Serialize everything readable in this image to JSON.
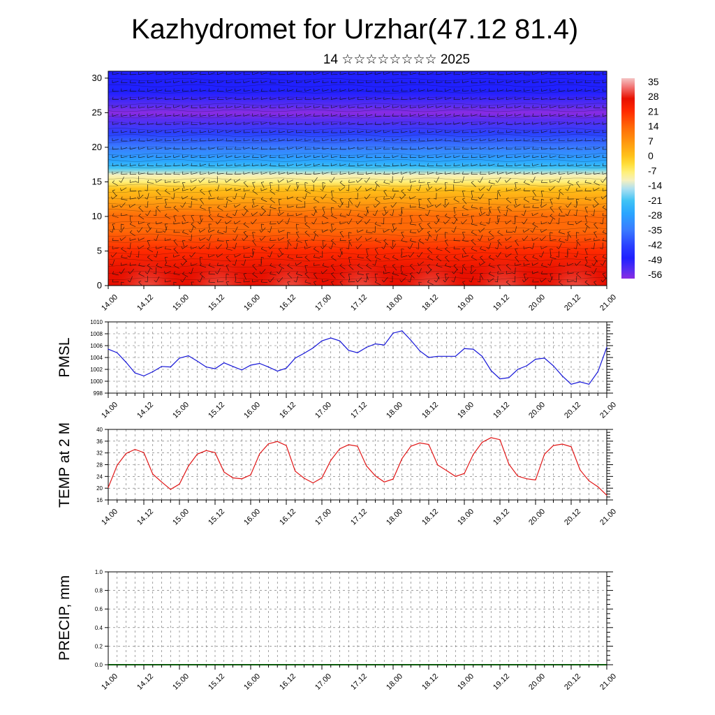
{
  "title": "Kazhydromet for Urzhar(47.12 81.4)",
  "subtitle": "14 ☆☆☆☆☆☆☆☆ 2025",
  "chart_data": [
    {
      "type": "heatmap",
      "x_ticks": [
        "14.00",
        "14.12",
        "15.00",
        "15.12",
        "16.00",
        "16.12",
        "17.00",
        "17.12",
        "18.00",
        "18.12",
        "19.00",
        "19.12",
        "20.00",
        "20.12",
        "21.00"
      ],
      "ylim": [
        0,
        31
      ],
      "y_ticks": [
        0,
        5,
        10,
        15,
        20,
        25,
        30
      ],
      "colorbar_labels": [
        "35",
        "28",
        "21",
        "14",
        "7",
        "0",
        "-7",
        "-14",
        "-21",
        "-28",
        "-35",
        "-42",
        "-49",
        "-56"
      ],
      "colorbar_range": [
        -60,
        38
      ],
      "temperature_profile": [
        {
          "level": 0,
          "temp": 32
        },
        {
          "level": 2,
          "temp": 30
        },
        {
          "level": 5,
          "temp": 26
        },
        {
          "level": 8,
          "temp": 22
        },
        {
          "level": 10,
          "temp": 18
        },
        {
          "level": 12,
          "temp": 10
        },
        {
          "level": 14,
          "temp": 2
        },
        {
          "level": 15,
          "temp": -6
        },
        {
          "level": 16,
          "temp": -10
        },
        {
          "level": 17,
          "temp": -16
        },
        {
          "level": 18,
          "temp": -24
        },
        {
          "level": 20,
          "temp": -32
        },
        {
          "level": 22,
          "temp": -40
        },
        {
          "level": 24,
          "temp": -50
        },
        {
          "level": 25,
          "temp": -56
        },
        {
          "level": 26,
          "temp": -52
        },
        {
          "level": 28,
          "temp": -46
        },
        {
          "level": 31,
          "temp": -44
        }
      ]
    },
    {
      "type": "line",
      "ylabel": "PMSL",
      "ylim": [
        998,
        1010
      ],
      "y_ticks": [
        998,
        1000,
        1002,
        1004,
        1006,
        1008,
        1010
      ],
      "x_ticks": [
        "14.00",
        "14.12",
        "15.00",
        "15.12",
        "16.00",
        "16.12",
        "17.00",
        "17.12",
        "18.00",
        "18.12",
        "19.00",
        "19.12",
        "20.00",
        "20.12",
        "21.00"
      ],
      "color": "#1515d8",
      "x": [
        0,
        3,
        6,
        9,
        12,
        15,
        18,
        21,
        24,
        27,
        30,
        33,
        36,
        39,
        42,
        45,
        48,
        51,
        54,
        57,
        60,
        63,
        66,
        69,
        72,
        75,
        78,
        81,
        84,
        87,
        90,
        93,
        96,
        99,
        102,
        105,
        108,
        111,
        114,
        117,
        120,
        123,
        126,
        129,
        132,
        135,
        138,
        141,
        144,
        147,
        150,
        153,
        156,
        159,
        162,
        165,
        168
      ],
      "values": [
        1005.4,
        1004.8,
        1003.2,
        1001.4,
        1000.9,
        1001.6,
        1002.5,
        1002.4,
        1003.9,
        1004.3,
        1003.4,
        1002.4,
        1002.1,
        1003.1,
        1002.5,
        1001.9,
        1002.7,
        1003.0,
        1002.4,
        1001.7,
        1002.2,
        1003.9,
        1004.7,
        1005.6,
        1006.8,
        1007.3,
        1006.8,
        1005.2,
        1004.8,
        1005.7,
        1006.3,
        1006.1,
        1008.1,
        1008.5,
        1006.9,
        1005.1,
        1004.0,
        1004.2,
        1004.2,
        1004.2,
        1005.5,
        1005.4,
        1004.2,
        1001.8,
        1000.4,
        1000.6,
        1002.0,
        1002.6,
        1003.7,
        1003.9,
        1002.6,
        1000.9,
        999.5,
        999.9,
        999.5,
        1001.6,
        1005.7
      ]
    },
    {
      "type": "line",
      "ylabel": "TEMP at 2 M",
      "ylim": [
        16,
        40
      ],
      "y_ticks": [
        16,
        20,
        24,
        28,
        32,
        36,
        40
      ],
      "x_ticks": [
        "14.00",
        "14.12",
        "15.00",
        "15.12",
        "16.00",
        "16.12",
        "17.00",
        "17.12",
        "18.00",
        "18.12",
        "19.00",
        "19.12",
        "20.00",
        "20.12",
        "21.00"
      ],
      "color": "#e01515",
      "x": [
        0,
        3,
        6,
        9,
        12,
        15,
        18,
        21,
        24,
        27,
        30,
        33,
        36,
        39,
        42,
        45,
        48,
        51,
        54,
        57,
        60,
        63,
        66,
        69,
        72,
        75,
        78,
        81,
        84,
        87,
        90,
        93,
        96,
        99,
        102,
        105,
        108,
        111,
        114,
        117,
        120,
        123,
        126,
        129,
        132,
        135,
        138,
        141,
        144,
        147,
        150,
        153,
        156,
        159,
        162,
        165,
        168
      ],
      "values": [
        20.2,
        27.8,
        31.8,
        33.2,
        32.1,
        24.8,
        22.1,
        19.6,
        21.4,
        27.5,
        31.6,
        32.8,
        32.1,
        25.5,
        23.5,
        23.2,
        24.5,
        31.7,
        35.1,
        35.9,
        34.5,
        25.8,
        23.4,
        21.8,
        23.5,
        29.5,
        33.4,
        34.8,
        34.3,
        27.6,
        24.2,
        22.1,
        23.1,
        30.1,
        34.3,
        35.4,
        34.9,
        27.9,
        26.0,
        24.0,
        25.0,
        31.5,
        35.6,
        37.2,
        36.5,
        28.2,
        24.1,
        23.2,
        22.8,
        31.6,
        34.5,
        35.0,
        34.1,
        26.2,
        22.5,
        20.5,
        17.6
      ]
    },
    {
      "type": "bar",
      "ylabel": "PRECIP, mm",
      "ylim": [
        0,
        1.0
      ],
      "y_ticks": [
        "0.0",
        "0.2",
        "0.4",
        "0.6",
        "0.8",
        "1.0"
      ],
      "x_ticks": [
        "14.00",
        "14.12",
        "15.00",
        "15.12",
        "16.00",
        "16.12",
        "17.00",
        "17.12",
        "18.00",
        "18.12",
        "19.00",
        "19.12",
        "20.00",
        "20.12",
        "21.00"
      ],
      "values": []
    }
  ]
}
